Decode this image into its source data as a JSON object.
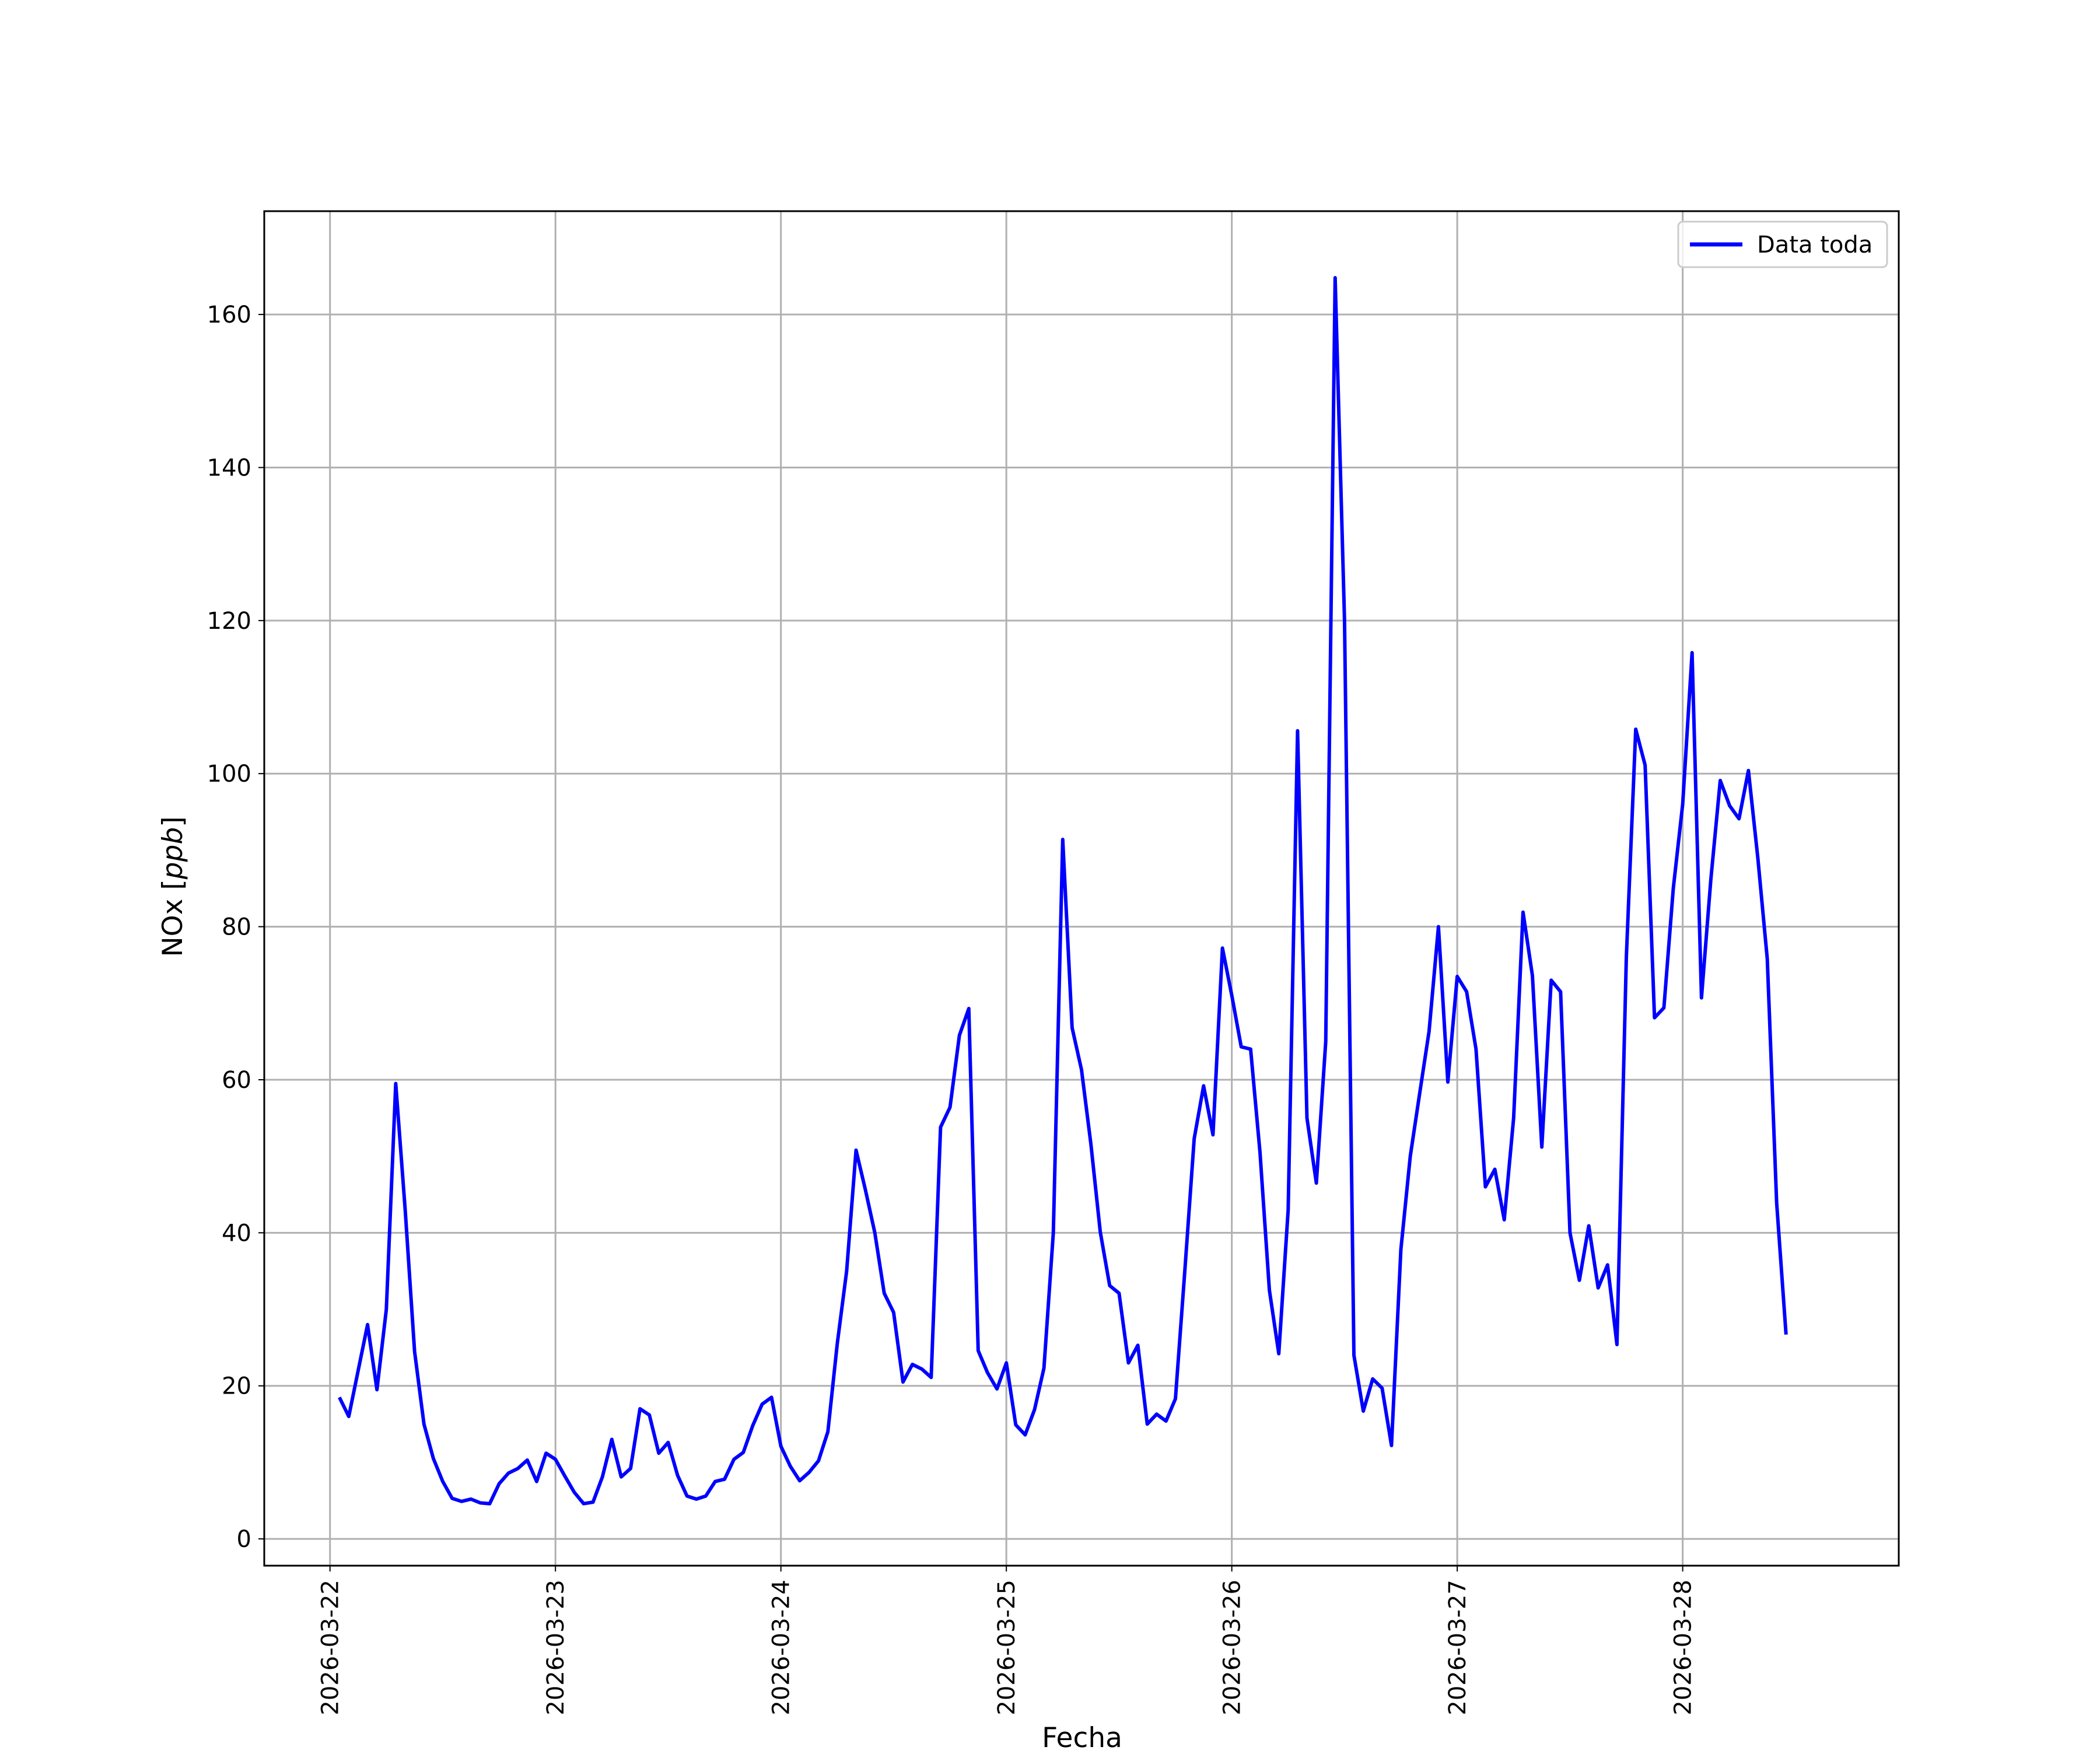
{
  "chart_data": {
    "type": "line",
    "title": "",
    "xlabel": "Fecha",
    "ylabel_prefix": "NOx [",
    "ylabel_unit": "ppb",
    "ylabel_suffix": "]",
    "grid": true,
    "legend_position": "top-right",
    "xlim": [
      "2026-03-21 17:00",
      "2026-03-28 23:00"
    ],
    "ylim": [
      -3.5,
      173.5
    ],
    "x_ticks": [
      "2026-03-22",
      "2026-03-23",
      "2026-03-24",
      "2026-03-25",
      "2026-03-26",
      "2026-03-27",
      "2026-03-28"
    ],
    "y_ticks": [
      0,
      20,
      40,
      60,
      80,
      100,
      120,
      140,
      160
    ],
    "series": [
      {
        "name": "Data toda",
        "color": "#0000ff",
        "x": [
          "2026-03-22 01:00",
          "2026-03-22 02:00",
          "2026-03-22 03:00",
          "2026-03-22 04:00",
          "2026-03-22 05:00",
          "2026-03-22 06:00",
          "2026-03-22 07:00",
          "2026-03-22 08:00",
          "2026-03-22 09:00",
          "2026-03-22 10:00",
          "2026-03-22 11:00",
          "2026-03-22 12:00",
          "2026-03-22 13:00",
          "2026-03-22 14:00",
          "2026-03-22 15:00",
          "2026-03-22 16:00",
          "2026-03-22 17:00",
          "2026-03-22 18:00",
          "2026-03-22 19:00",
          "2026-03-22 20:00",
          "2026-03-22 21:00",
          "2026-03-22 22:00",
          "2026-03-22 23:00",
          "2026-03-23 00:00",
          "2026-03-23 01:00",
          "2026-03-23 02:00",
          "2026-03-23 03:00",
          "2026-03-23 04:00",
          "2026-03-23 05:00",
          "2026-03-23 06:00",
          "2026-03-23 07:00",
          "2026-03-23 08:00",
          "2026-03-23 09:00",
          "2026-03-23 10:00",
          "2026-03-23 11:00",
          "2026-03-23 12:00",
          "2026-03-23 13:00",
          "2026-03-23 14:00",
          "2026-03-23 15:00",
          "2026-03-23 16:00",
          "2026-03-23 17:00",
          "2026-03-23 18:00",
          "2026-03-23 19:00",
          "2026-03-23 20:00",
          "2026-03-23 21:00",
          "2026-03-23 22:00",
          "2026-03-23 23:00",
          "2026-03-24 00:00",
          "2026-03-24 01:00",
          "2026-03-24 02:00",
          "2026-03-24 03:00",
          "2026-03-24 04:00",
          "2026-03-24 05:00",
          "2026-03-24 06:00",
          "2026-03-24 07:00",
          "2026-03-24 08:00",
          "2026-03-24 09:00",
          "2026-03-24 10:00",
          "2026-03-24 11:00",
          "2026-03-24 12:00",
          "2026-03-24 13:00",
          "2026-03-24 14:00",
          "2026-03-24 15:00",
          "2026-03-24 16:00",
          "2026-03-24 17:00",
          "2026-03-24 18:00",
          "2026-03-24 19:00",
          "2026-03-24 20:00",
          "2026-03-24 21:00",
          "2026-03-24 22:00",
          "2026-03-24 23:00",
          "2026-03-25 00:00",
          "2026-03-25 01:00",
          "2026-03-25 02:00",
          "2026-03-25 03:00",
          "2026-03-25 04:00",
          "2026-03-25 05:00",
          "2026-03-25 06:00",
          "2026-03-25 07:00",
          "2026-03-25 08:00",
          "2026-03-25 09:00",
          "2026-03-25 10:00",
          "2026-03-25 11:00",
          "2026-03-25 12:00",
          "2026-03-25 13:00",
          "2026-03-25 14:00",
          "2026-03-25 15:00",
          "2026-03-25 16:00",
          "2026-03-25 17:00",
          "2026-03-25 18:00",
          "2026-03-25 19:00",
          "2026-03-25 20:00",
          "2026-03-25 21:00",
          "2026-03-25 22:00",
          "2026-03-25 23:00",
          "2026-03-26 00:00",
          "2026-03-26 01:00",
          "2026-03-26 02:00",
          "2026-03-26 03:00",
          "2026-03-26 04:00",
          "2026-03-26 05:00",
          "2026-03-26 06:00",
          "2026-03-26 07:00",
          "2026-03-26 08:00",
          "2026-03-26 09:00",
          "2026-03-26 10:00",
          "2026-03-26 11:00",
          "2026-03-26 12:00",
          "2026-03-26 13:00",
          "2026-03-26 14:00",
          "2026-03-26 15:00",
          "2026-03-26 16:00",
          "2026-03-26 17:00",
          "2026-03-26 18:00",
          "2026-03-26 19:00",
          "2026-03-26 20:00",
          "2026-03-26 21:00",
          "2026-03-26 22:00",
          "2026-03-26 23:00",
          "2026-03-27 00:00",
          "2026-03-27 01:00",
          "2026-03-27 02:00",
          "2026-03-27 03:00",
          "2026-03-27 04:00",
          "2026-03-27 05:00",
          "2026-03-27 06:00",
          "2026-03-27 07:00",
          "2026-03-27 08:00",
          "2026-03-27 09:00",
          "2026-03-27 10:00",
          "2026-03-27 11:00",
          "2026-03-27 12:00",
          "2026-03-27 13:00",
          "2026-03-27 14:00",
          "2026-03-27 15:00",
          "2026-03-27 16:00",
          "2026-03-27 17:00",
          "2026-03-27 18:00",
          "2026-03-27 19:00",
          "2026-03-27 20:00",
          "2026-03-27 21:00",
          "2026-03-27 22:00",
          "2026-03-27 23:00",
          "2026-03-28 00:00",
          "2026-03-28 01:00",
          "2026-03-28 02:00",
          "2026-03-28 03:00",
          "2026-03-28 04:00",
          "2026-03-28 05:00",
          "2026-03-28 06:00",
          "2026-03-28 07:00",
          "2026-03-28 08:00",
          "2026-03-28 09:00",
          "2026-03-28 10:00",
          "2026-03-28 11:00"
        ],
        "y": [
          18.5,
          16.0,
          22.0,
          28.0,
          19.5,
          30.0,
          59.5,
          43.0,
          24.5,
          15.0,
          10.5,
          7.5,
          5.3,
          4.9,
          5.2,
          4.7,
          4.6,
          7.2,
          8.6,
          9.2,
          10.3,
          7.5,
          11.2,
          10.4,
          8.2,
          6.1,
          4.6,
          4.8,
          8.1,
          13.0,
          8.1,
          9.2,
          17.0,
          16.2,
          11.2,
          12.6,
          8.3,
          5.6,
          5.2,
          5.6,
          7.5,
          7.8,
          10.4,
          11.3,
          14.8,
          17.6,
          18.5,
          12.1,
          9.5,
          7.6,
          8.7,
          10.2,
          14.0,
          25.5,
          35.0,
          50.8,
          45.6,
          40.0,
          32.1,
          29.6,
          20.5,
          22.8,
          22.2,
          21.1,
          53.8,
          56.4,
          65.8,
          69.3,
          24.6,
          21.7,
          19.6,
          23.0,
          14.9,
          13.6,
          16.9,
          22.3,
          40.0,
          91.4,
          66.8,
          61.3,
          51.6,
          40.1,
          33.1,
          32.1,
          23.0,
          25.3,
          15.0,
          16.3,
          15.4,
          18.3,
          35.0,
          52.3,
          59.2,
          52.8,
          77.2,
          71.0,
          64.3,
          64.0,
          50.5,
          32.5,
          24.2,
          43.0,
          105.6,
          55.0,
          46.5,
          65.0,
          164.8,
          120.0,
          24.0,
          16.7,
          20.9,
          19.7,
          12.2,
          37.8,
          50.0,
          58.2,
          66.3,
          80.0,
          59.7,
          73.5,
          71.5,
          64.0,
          46.0,
          48.3,
          41.7,
          55.0,
          81.9,
          73.6,
          51.2,
          73.0,
          71.5,
          40.0,
          33.8,
          40.9,
          32.8,
          35.8,
          25.4,
          76.0,
          105.8,
          101.1,
          68.1,
          69.4,
          85.0,
          96.0,
          115.8,
          70.7,
          86.2,
          99.1,
          95.8,
          94.1,
          100.4,
          89.0,
          75.8,
          43.9,
          26.7
        ]
      }
    ]
  }
}
